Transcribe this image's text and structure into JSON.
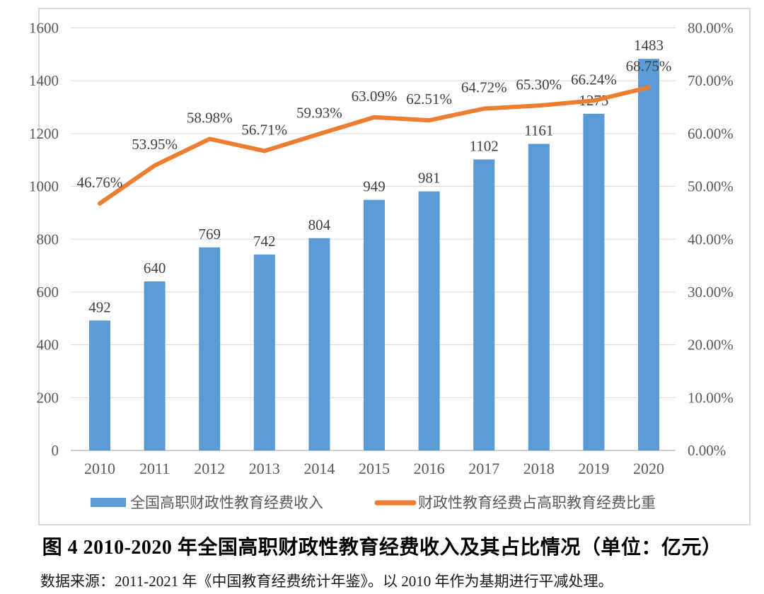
{
  "caption": "图 4  2010-2020 年全国高职财政性教育经费收入及其占比情况（单位：亿元）",
  "source": "数据来源：2011-2021 年《中国教育经费统计年鉴》。以 2010 年作为基期进行平减处理。",
  "colors": {
    "bar": "#5B9BD5",
    "line": "#ED7D31",
    "grid": "#D9D9D9",
    "axis_line": "#BFBFBF",
    "tick_text": "#595959",
    "label_text": "#404040",
    "panel_border": "#D9D9D9",
    "background": "#FFFFFF"
  },
  "chart_data": {
    "type": "bar",
    "subtype": "bar+line combo, dual axis",
    "categories": [
      "2010",
      "2011",
      "2012",
      "2013",
      "2014",
      "2015",
      "2016",
      "2017",
      "2018",
      "2019",
      "2020"
    ],
    "series": [
      {
        "name": "全国高职财政性教育经费收入",
        "type": "bar",
        "axis": "left",
        "values": [
          492,
          640,
          769,
          742,
          804,
          949,
          981,
          1102,
          1161,
          1275,
          1483
        ],
        "labels": [
          "492",
          "640",
          "769",
          "742",
          "804",
          "949",
          "981",
          "1102",
          "1161",
          "1275",
          "1483"
        ]
      },
      {
        "name": "财政性教育经费占高职教育经费比重",
        "type": "line",
        "axis": "right",
        "values": [
          46.76,
          53.95,
          58.98,
          56.71,
          59.93,
          63.09,
          62.51,
          64.72,
          65.3,
          66.24,
          68.75
        ],
        "labels": [
          "46.76%",
          "53.95%",
          "58.98%",
          "56.71%",
          "59.93%",
          "63.09%",
          "62.51%",
          "64.72%",
          "65.30%",
          "66.24%",
          "68.75%"
        ]
      }
    ],
    "left_axis": {
      "min": 0,
      "max": 1600,
      "step": 200,
      "ticks": [
        "0",
        "200",
        "400",
        "600",
        "800",
        "1000",
        "1200",
        "1400",
        "1600"
      ]
    },
    "right_axis": {
      "min": 0,
      "max": 80,
      "step": 10,
      "ticks": [
        "0.00%",
        "10.00%",
        "20.00%",
        "30.00%",
        "40.00%",
        "50.00%",
        "60.00%",
        "70.00%",
        "80.00%"
      ]
    },
    "grid": true,
    "legend_position": "bottom"
  }
}
